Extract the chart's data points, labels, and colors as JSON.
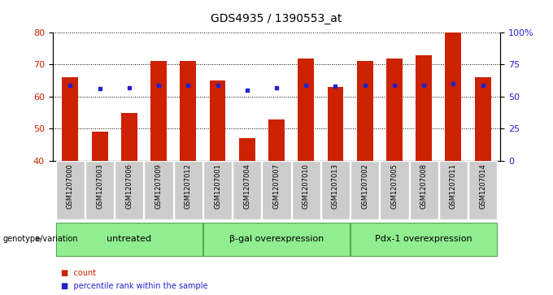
{
  "title": "GDS4935 / 1390553_at",
  "samples": [
    "GSM1207000",
    "GSM1207003",
    "GSM1207006",
    "GSM1207009",
    "GSM1207012",
    "GSM1207001",
    "GSM1207004",
    "GSM1207007",
    "GSM1207010",
    "GSM1207013",
    "GSM1207002",
    "GSM1207005",
    "GSM1207008",
    "GSM1207011",
    "GSM1207014"
  ],
  "counts": [
    66,
    49,
    55,
    71,
    71,
    65,
    47,
    53,
    72,
    63,
    71,
    72,
    73,
    80,
    66
  ],
  "percentiles": [
    59,
    56,
    57,
    59,
    59,
    59,
    55,
    57,
    59,
    58,
    59,
    59,
    59,
    60,
    59
  ],
  "groups": [
    {
      "label": "untreated",
      "start": 0,
      "end": 5
    },
    {
      "label": "β-gal overexpression",
      "start": 5,
      "end": 10
    },
    {
      "label": "Pdx-1 overexpression",
      "start": 10,
      "end": 15
    }
  ],
  "ylim_left": [
    40,
    80
  ],
  "ylim_right": [
    0,
    100
  ],
  "yticks_left": [
    40,
    50,
    60,
    70,
    80
  ],
  "yticks_right": [
    0,
    25,
    50,
    75,
    100
  ],
  "ytick_labels_right": [
    "0",
    "25",
    "50",
    "75",
    "100%"
  ],
  "bar_color": "#cc2200",
  "dot_color": "#2222cc",
  "bar_width": 0.55,
  "genotype_label": "genotype/variation",
  "legend_count": "count",
  "legend_percentile": "percentile rank within the sample",
  "title_fontsize": 10,
  "tick_fontsize": 8,
  "group_fontsize": 8,
  "sample_fontsize": 6,
  "legend_fontsize": 7
}
